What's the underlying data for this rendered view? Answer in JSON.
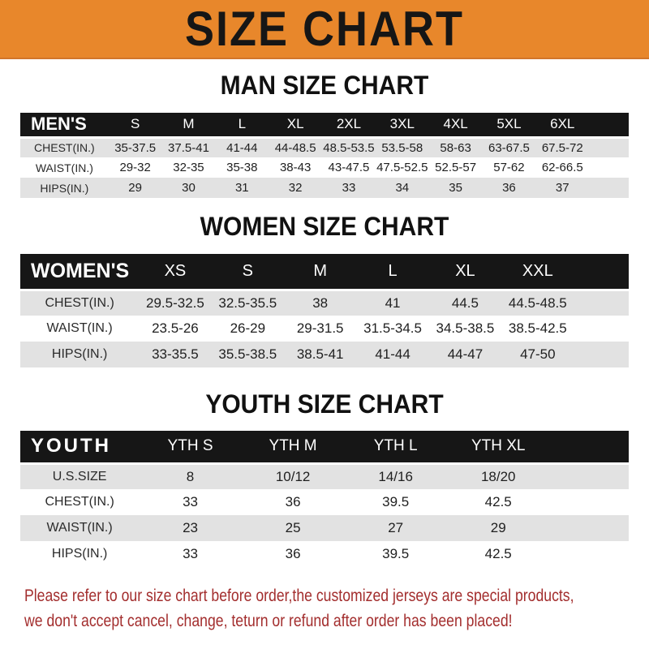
{
  "banner": {
    "title": "SIZE CHART"
  },
  "colors": {
    "banner_bg": "#E8872B",
    "header_bar_bg": "#161616",
    "stripe_gray": "#E2E2E2",
    "notice_red": "#A32E2E"
  },
  "sections": [
    {
      "heading": "MAN SIZE CHART",
      "corner_label": "MEN'S",
      "columns": [
        "S",
        "M",
        "L",
        "XL",
        "2XL",
        "3XL",
        "4XL",
        "5XL",
        "6XL"
      ],
      "rows": [
        {
          "label": "CHEST(IN.)",
          "values": [
            "35-37.5",
            "37.5-41",
            "41-44",
            "44-48.5",
            "48.5-53.5",
            "53.5-58",
            "58-63",
            "63-67.5",
            "67.5-72"
          ]
        },
        {
          "label": "WAIST(IN.)",
          "values": [
            "29-32",
            "32-35",
            "35-38",
            "38-43",
            "43-47.5",
            "47.5-52.5",
            "52.5-57",
            "57-62",
            "62-66.5"
          ]
        },
        {
          "label": "HIPS(IN.)",
          "values": [
            "29",
            "30",
            "31",
            "32",
            "33",
            "34",
            "35",
            "36",
            "37"
          ]
        }
      ]
    },
    {
      "heading": "WOMEN SIZE CHART",
      "corner_label": "WOMEN'S",
      "columns": [
        "XS",
        "S",
        "M",
        "L",
        "XL",
        "XXL"
      ],
      "rows": [
        {
          "label": "CHEST(IN.)",
          "values": [
            "29.5-32.5",
            "32.5-35.5",
            "38",
            "41",
            "44.5",
            "44.5-48.5"
          ]
        },
        {
          "label": "WAIST(IN.)",
          "values": [
            "23.5-26",
            "26-29",
            "29-31.5",
            "31.5-34.5",
            "34.5-38.5",
            "38.5-42.5"
          ]
        },
        {
          "label": "HIPS(IN.)",
          "values": [
            "33-35.5",
            "35.5-38.5",
            "38.5-41",
            "41-44",
            "44-47",
            "47-50"
          ]
        }
      ]
    },
    {
      "heading": "YOUTH SIZE CHART",
      "corner_label": "YOUTH",
      "columns": [
        "YTH S",
        "YTH M",
        "YTH L",
        "YTH XL"
      ],
      "rows": [
        {
          "label": "U.S.SIZE",
          "values": [
            "8",
            "10/12",
            "14/16",
            "18/20"
          ]
        },
        {
          "label": "CHEST(IN.)",
          "values": [
            "33",
            "36",
            "39.5",
            "42.5"
          ]
        },
        {
          "label": "WAIST(IN.)",
          "values": [
            "23",
            "25",
            "27",
            "29"
          ]
        },
        {
          "label": "HIPS(IN.)",
          "values": [
            "33",
            "36",
            "39.5",
            "42.5"
          ]
        }
      ]
    }
  ],
  "notice": {
    "line1": "Please refer to our size chart before order,the customized jerseys are special products,",
    "line2": "we don't accept cancel, change, teturn or refund after order has been placed!"
  }
}
